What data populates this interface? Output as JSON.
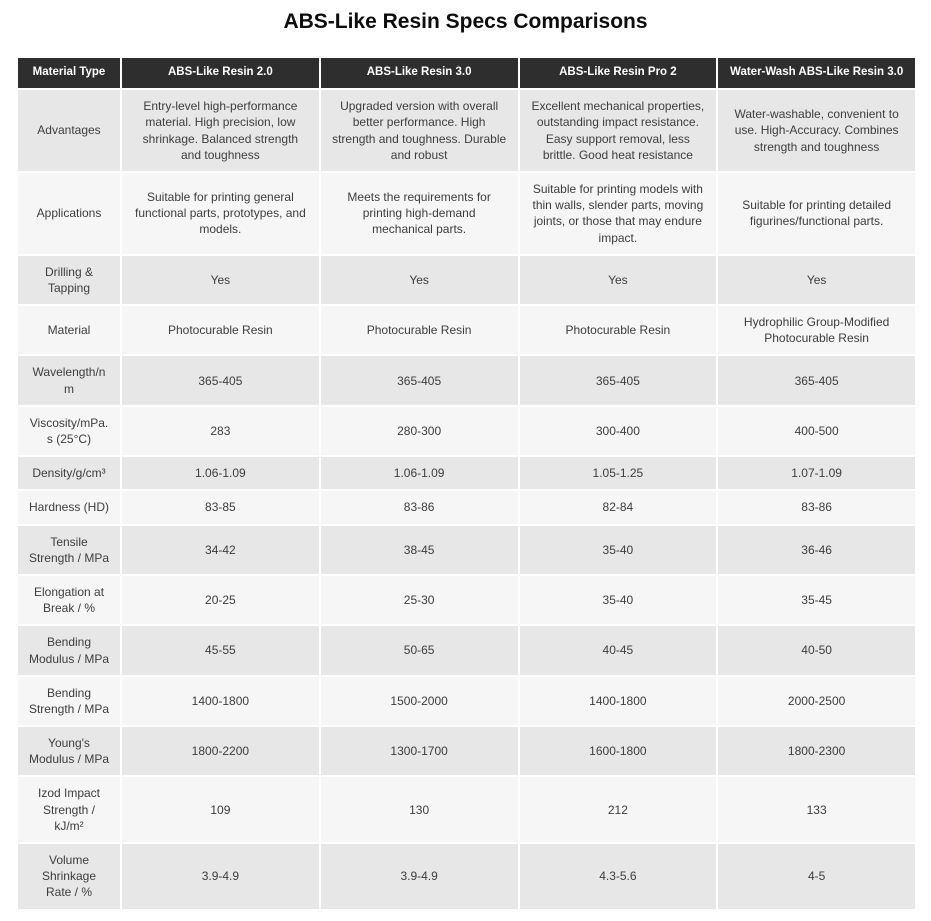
{
  "page": {
    "title": "ABS-Like Resin Specs Comparisons"
  },
  "colors": {
    "header_bg": "#2e2e2e",
    "header_text": "#ffffff",
    "row_odd": "#e7e7e7",
    "row_even": "#f6f6f6",
    "body_text": "#3d3d3d",
    "title_text": "#0d0d0d"
  },
  "table": {
    "columns": [
      "Material Type",
      "ABS-Like Resin 2.0",
      "ABS-Like Resin 3.0",
      "ABS-Like Resin Pro 2",
      "Water-Wash ABS-Like Resin 3.0"
    ],
    "rows": [
      {
        "label": "Advantages",
        "values": [
          "Entry-level high-performance material. High precision, low shrinkage. Balanced strength and toughness",
          "Upgraded version with overall better performance. High strength and toughness. Durable and robust",
          "Excellent mechanical properties, outstanding impact resistance. Easy support removal, less brittle. Good heat resistance",
          "Water-washable, convenient to use. High-Accuracy. Combines strength and toughness"
        ]
      },
      {
        "label": "Applications",
        "values": [
          "Suitable for printing general functional parts, prototypes, and models.",
          "Meets the requirements for printing high-demand mechanical parts.",
          "Suitable for printing models with thin walls, slender parts, moving joints, or those that may endure impact.",
          "Suitable for printing detailed figurines/functional parts."
        ]
      },
      {
        "label": "Drilling & Tapping",
        "values": [
          "Yes",
          "Yes",
          "Yes",
          "Yes"
        ]
      },
      {
        "label": "Material",
        "values": [
          "Photocurable Resin",
          "Photocurable Resin",
          "Photocurable Resin",
          "Hydrophilic Group-Modified Photocurable Resin"
        ]
      },
      {
        "label": "Wavelength/nm",
        "values": [
          "365-405",
          "365-405",
          "365-405",
          "365-405"
        ]
      },
      {
        "label": "Viscosity/mPa.s (25°C)",
        "values": [
          "283",
          "280-300",
          "300-400",
          "400-500"
        ]
      },
      {
        "label": "Density/g/cm³",
        "values": [
          "1.06-1.09",
          "1.06-1.09",
          "1.05-1.25",
          "1.07-1.09"
        ]
      },
      {
        "label": "Hardness (HD)",
        "values": [
          "83-85",
          "83-86",
          "82-84",
          "83-86"
        ]
      },
      {
        "label": "Tensile Strength / MPa",
        "values": [
          "34-42",
          "38-45",
          "35-40",
          "36-46"
        ]
      },
      {
        "label": "Elongation at Break / %",
        "values": [
          "20-25",
          "25-30",
          "35-40",
          "35-45"
        ]
      },
      {
        "label": "Bending Modulus / MPa",
        "values": [
          "45-55",
          "50-65",
          "40-45",
          "40-50"
        ]
      },
      {
        "label": "Bending Strength / MPa",
        "values": [
          "1400-1800",
          "1500-2000",
          "1400-1800",
          "2000-2500"
        ]
      },
      {
        "label": "Young's Modulus / MPa",
        "values": [
          "1800-2200",
          "1300-1700",
          "1600-1800",
          "1800-2300"
        ]
      },
      {
        "label": "Izod Impact Strength / kJ/m²",
        "values": [
          "109",
          "130",
          "212",
          "133"
        ]
      },
      {
        "label": "Volume Shrinkage Rate / %",
        "values": [
          "3.9-4.9",
          "3.9-4.9",
          "4.3-5.6",
          "4-5"
        ]
      }
    ]
  }
}
